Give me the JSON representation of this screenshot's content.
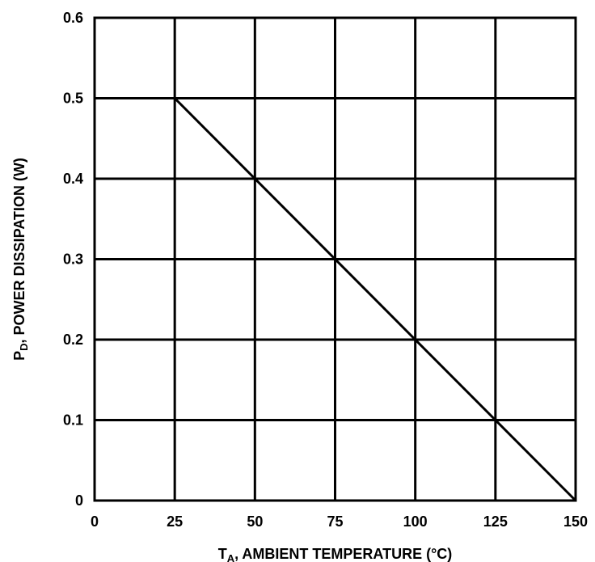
{
  "chart_data": {
    "type": "line",
    "title": "",
    "xlabel": {
      "symbol": "T",
      "subscript": "A",
      "text": ", AMBIENT TEMPERATURE (°C)"
    },
    "ylabel": {
      "symbol": "P",
      "subscript": "D",
      "text": ", POWER DISSIPATION (W)"
    },
    "xlim": [
      0,
      150
    ],
    "ylim": [
      0,
      0.6
    ],
    "x_ticks": [
      0,
      25,
      50,
      75,
      100,
      125,
      150
    ],
    "y_ticks": [
      0,
      0.1,
      0.2,
      0.3,
      0.4,
      0.5,
      0.6
    ],
    "x_tick_labels": [
      "0",
      "25",
      "50",
      "75",
      "100",
      "125",
      "150"
    ],
    "y_tick_labels": [
      "0",
      "0.1",
      "0.2",
      "0.3",
      "0.4",
      "0.5",
      "0.6"
    ],
    "grid": true,
    "legend": "none",
    "series": [
      {
        "x": [
          25,
          150
        ],
        "y": [
          0.5,
          0
        ],
        "color": "#000000"
      }
    ]
  }
}
